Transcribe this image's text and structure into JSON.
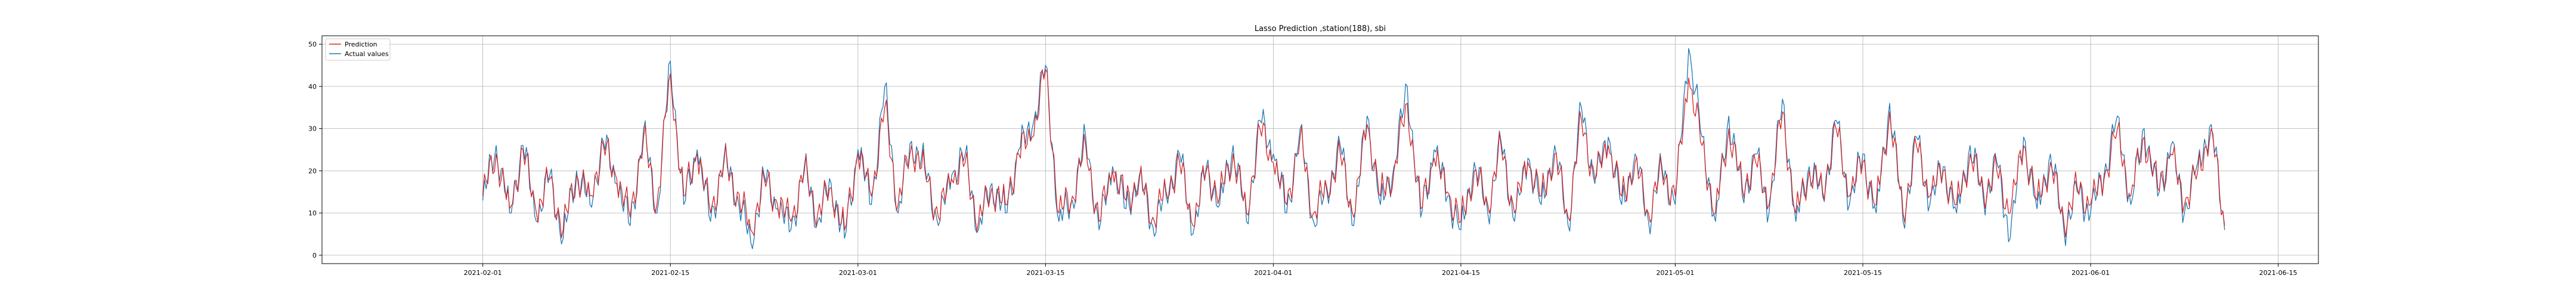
{
  "chart_data": {
    "type": "line",
    "title": "Lasso Prediction ,station(188), sbi",
    "xlabel": "",
    "ylabel": "",
    "x_range": [
      "2021-01-20",
      "2021-06-18"
    ],
    "ylim": [
      -2,
      52
    ],
    "grid": true,
    "legend_position": "top-left",
    "x_ticks": [
      "2021-02-01",
      "2021-02-15",
      "2021-03-01",
      "2021-03-15",
      "2021-04-01",
      "2021-04-15",
      "2021-05-01",
      "2021-05-15",
      "2021-06-01",
      "2021-06-15"
    ],
    "y_ticks": [
      0,
      10,
      20,
      30,
      40,
      50
    ],
    "series_style": [
      {
        "name": "Prediction",
        "color": "#d62728"
      },
      {
        "name": "Actual values",
        "color": "#1f77b4"
      }
    ],
    "data_start": "2021-02-01",
    "data_end": "2021-06-11",
    "series": [
      {
        "name": "Prediction",
        "x": [
          "2021-02-01",
          "2021-02-02",
          "2021-02-03",
          "2021-02-04",
          "2021-02-05",
          "2021-02-06",
          "2021-02-07",
          "2021-02-08",
          "2021-02-09",
          "2021-02-10",
          "2021-02-11",
          "2021-02-12",
          "2021-02-13",
          "2021-02-14",
          "2021-02-15",
          "2021-02-16",
          "2021-02-17",
          "2021-02-18",
          "2021-02-19",
          "2021-02-20",
          "2021-02-21",
          "2021-02-22",
          "2021-02-23",
          "2021-02-24",
          "2021-02-25",
          "2021-02-26",
          "2021-02-27",
          "2021-02-28",
          "2021-03-01",
          "2021-03-02",
          "2021-03-03",
          "2021-03-04",
          "2021-03-05",
          "2021-03-06",
          "2021-03-07",
          "2021-03-08",
          "2021-03-09",
          "2021-03-10",
          "2021-03-11",
          "2021-03-12",
          "2021-03-13",
          "2021-03-14",
          "2021-03-15",
          "2021-03-16",
          "2021-03-17",
          "2021-03-18",
          "2021-03-19",
          "2021-03-20",
          "2021-03-21",
          "2021-03-22",
          "2021-03-23",
          "2021-03-24",
          "2021-03-25",
          "2021-03-26",
          "2021-03-27",
          "2021-03-28",
          "2021-03-29",
          "2021-03-30",
          "2021-03-31",
          "2021-04-01",
          "2021-04-02",
          "2021-04-03",
          "2021-04-04",
          "2021-04-05",
          "2021-04-06",
          "2021-04-07",
          "2021-04-08",
          "2021-04-09",
          "2021-04-10",
          "2021-04-11",
          "2021-04-12",
          "2021-04-13",
          "2021-04-14",
          "2021-04-15",
          "2021-04-16",
          "2021-04-17",
          "2021-04-18",
          "2021-04-19",
          "2021-04-20",
          "2021-04-21",
          "2021-04-22",
          "2021-04-23",
          "2021-04-24",
          "2021-04-25",
          "2021-04-26",
          "2021-04-27",
          "2021-04-28",
          "2021-04-29",
          "2021-04-30",
          "2021-05-01",
          "2021-05-02",
          "2021-05-03",
          "2021-05-04",
          "2021-05-05",
          "2021-05-06",
          "2021-05-07",
          "2021-05-08",
          "2021-05-09",
          "2021-05-10",
          "2021-05-11",
          "2021-05-12",
          "2021-05-13",
          "2021-05-14",
          "2021-05-15",
          "2021-05-16",
          "2021-05-17",
          "2021-05-18",
          "2021-05-19",
          "2021-05-20",
          "2021-05-21",
          "2021-05-22",
          "2021-05-23",
          "2021-05-24",
          "2021-05-25",
          "2021-05-26",
          "2021-05-27",
          "2021-05-28",
          "2021-05-29",
          "2021-05-30",
          "2021-05-31",
          "2021-06-01",
          "2021-06-02",
          "2021-06-03",
          "2021-06-04",
          "2021-06-05",
          "2021-06-06",
          "2021-06-07",
          "2021-06-08",
          "2021-06-09",
          "2021-06-10",
          "2021-06-11"
        ],
        "y": [
          14,
          24,
          11,
          25,
          10,
          18,
          6,
          19,
          14,
          26,
          18,
          9,
          28,
          12,
          43,
          14,
          24,
          10,
          22,
          15,
          6,
          18,
          12,
          8,
          20,
          10,
          16,
          6,
          24,
          14,
          35,
          12,
          26,
          20,
          9,
          18,
          22,
          8,
          16,
          12,
          24,
          28,
          44,
          10,
          14,
          26,
          8,
          20,
          13,
          18,
          9,
          15,
          22,
          7,
          20,
          14,
          24,
          10,
          30,
          22,
          12,
          28,
          10,
          16,
          24,
          9,
          31,
          14,
          20,
          36,
          11,
          23,
          15,
          8,
          20,
          12,
          26,
          10,
          22,
          14,
          24,
          9,
          32,
          18,
          26,
          14,
          22,
          10,
          20,
          14,
          42,
          26,
          10,
          30,
          16,
          22,
          12,
          34,
          10,
          20,
          15,
          30,
          14,
          22,
          12,
          34,
          10,
          26,
          14,
          20,
          12,
          24,
          15,
          20,
          10,
          26,
          13,
          22,
          8,
          16,
          12,
          18,
          30,
          14,
          28,
          16,
          24,
          12,
          20,
          30,
          7
        ]
      },
      {
        "name": "Actual values",
        "x": [
          "2021-02-01",
          "2021-02-02",
          "2021-02-03",
          "2021-02-04",
          "2021-02-05",
          "2021-02-06",
          "2021-02-07",
          "2021-02-08",
          "2021-02-09",
          "2021-02-10",
          "2021-02-11",
          "2021-02-12",
          "2021-02-13",
          "2021-02-14",
          "2021-02-15",
          "2021-02-16",
          "2021-02-17",
          "2021-02-18",
          "2021-02-19",
          "2021-02-20",
          "2021-02-21",
          "2021-02-22",
          "2021-02-23",
          "2021-02-24",
          "2021-02-25",
          "2021-02-26",
          "2021-02-27",
          "2021-02-28",
          "2021-03-01",
          "2021-03-02",
          "2021-03-03",
          "2021-03-04",
          "2021-03-05",
          "2021-03-06",
          "2021-03-07",
          "2021-03-08",
          "2021-03-09",
          "2021-03-10",
          "2021-03-11",
          "2021-03-12",
          "2021-03-13",
          "2021-03-14",
          "2021-03-15",
          "2021-03-16",
          "2021-03-17",
          "2021-03-18",
          "2021-03-19",
          "2021-03-20",
          "2021-03-21",
          "2021-03-22",
          "2021-03-23",
          "2021-03-24",
          "2021-03-25",
          "2021-03-26",
          "2021-03-27",
          "2021-03-28",
          "2021-03-29",
          "2021-03-30",
          "2021-03-31",
          "2021-04-01",
          "2021-04-02",
          "2021-04-03",
          "2021-04-04",
          "2021-04-05",
          "2021-04-06",
          "2021-04-07",
          "2021-04-08",
          "2021-04-09",
          "2021-04-10",
          "2021-04-11",
          "2021-04-12",
          "2021-04-13",
          "2021-04-14",
          "2021-04-15",
          "2021-04-16",
          "2021-04-17",
          "2021-04-18",
          "2021-04-19",
          "2021-04-20",
          "2021-04-21",
          "2021-04-22",
          "2021-04-23",
          "2021-04-24",
          "2021-04-25",
          "2021-04-26",
          "2021-04-27",
          "2021-04-28",
          "2021-04-29",
          "2021-04-30",
          "2021-05-01",
          "2021-05-02",
          "2021-05-03",
          "2021-05-04",
          "2021-05-05",
          "2021-05-06",
          "2021-05-07",
          "2021-05-08",
          "2021-05-09",
          "2021-05-10",
          "2021-05-11",
          "2021-05-12",
          "2021-05-13",
          "2021-05-14",
          "2021-05-15",
          "2021-05-16",
          "2021-05-17",
          "2021-05-18",
          "2021-05-19",
          "2021-05-20",
          "2021-05-21",
          "2021-05-22",
          "2021-05-23",
          "2021-05-24",
          "2021-05-25",
          "2021-05-26",
          "2021-05-27",
          "2021-05-28",
          "2021-05-29",
          "2021-05-30",
          "2021-05-31",
          "2021-06-01",
          "2021-06-02",
          "2021-06-03",
          "2021-06-04",
          "2021-06-05",
          "2021-06-06",
          "2021-06-07",
          "2021-06-08",
          "2021-06-09",
          "2021-06-10",
          "2021-06-11"
        ],
        "y": [
          13,
          26,
          10,
          26,
          8,
          19,
          4,
          20,
          12,
          27,
          17,
          7,
          30,
          10,
          46,
          12,
          25,
          8,
          23,
          14,
          3,
          19,
          11,
          6,
          21,
          8,
          17,
          4,
          25,
          12,
          40,
          10,
          27,
          21,
          7,
          19,
          24,
          6,
          17,
          10,
          25,
          30,
          45,
          8,
          13,
          28,
          6,
          21,
          11,
          19,
          7,
          14,
          24,
          5,
          21,
          12,
          26,
          8,
          32,
          24,
          10,
          30,
          8,
          15,
          26,
          7,
          33,
          12,
          21,
          40,
          9,
          25,
          14,
          6,
          22,
          10,
          27,
          8,
          23,
          12,
          26,
          7,
          35,
          17,
          28,
          12,
          24,
          8,
          21,
          12,
          49,
          28,
          8,
          33,
          14,
          24,
          10,
          37,
          8,
          21,
          14,
          32,
          12,
          24,
          10,
          36,
          8,
          28,
          12,
          21,
          10,
          26,
          13,
          22,
          4,
          28,
          11,
          24,
          6,
          15,
          10,
          19,
          33,
          12,
          30,
          14,
          26,
          10,
          22,
          31,
          6
        ]
      }
    ]
  }
}
